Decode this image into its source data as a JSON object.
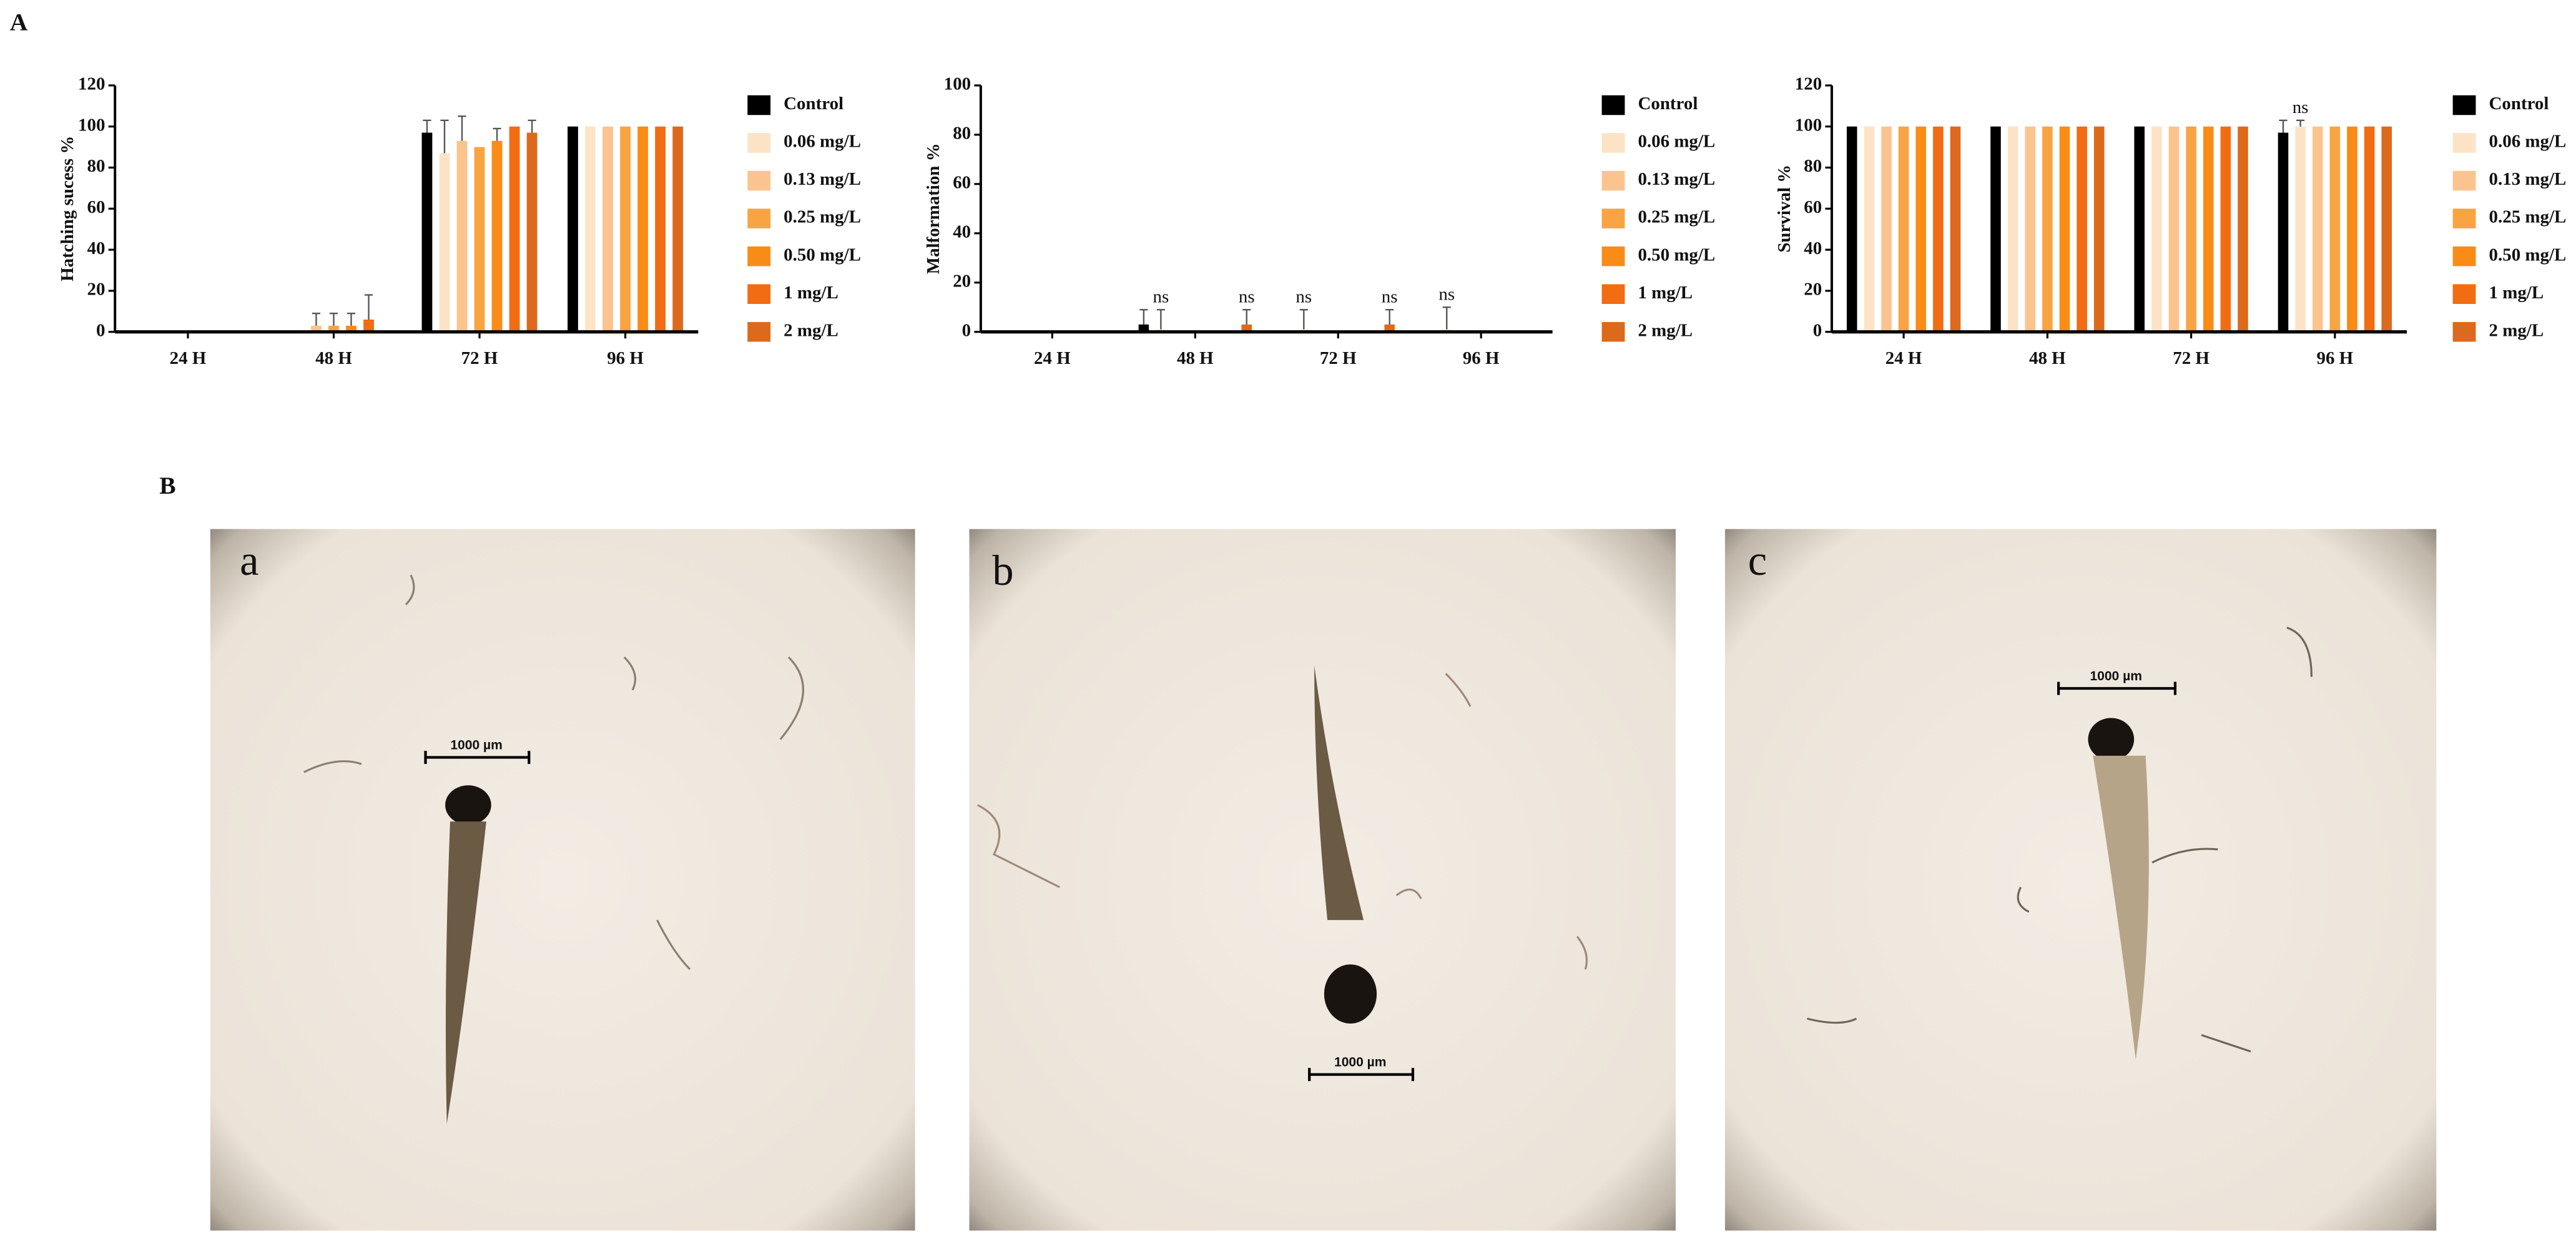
{
  "panel_labels": [
    "A",
    "B"
  ],
  "chart_data": [
    {
      "type": "bar",
      "ylabel": "Hatching sucess %",
      "categories": [
        "24 H",
        "48 H",
        "72 H",
        "96 H"
      ],
      "ylim": [
        0,
        120
      ],
      "yticks": [
        0,
        20,
        40,
        60,
        80,
        100,
        120
      ],
      "series": [
        {
          "name": "Control",
          "color": "#000000",
          "values": [
            0,
            0,
            97,
            100
          ],
          "errors": [
            0,
            0,
            6,
            0
          ]
        },
        {
          "name": "0.06 mg/L",
          "color": "#fde3c6",
          "values": [
            0,
            0,
            87,
            100
          ],
          "errors": [
            0,
            0,
            16,
            0
          ]
        },
        {
          "name": "0.13 mg/L",
          "color": "#fbc48f",
          "values": [
            0,
            3,
            93,
            100
          ],
          "errors": [
            0,
            6,
            12,
            0
          ]
        },
        {
          "name": "0.25 mg/L",
          "color": "#f9a443",
          "values": [
            0,
            3,
            90,
            100
          ],
          "errors": [
            0,
            6,
            0,
            0
          ]
        },
        {
          "name": "0.50 mg/L",
          "color": "#f98c16",
          "values": [
            0,
            3,
            93,
            100
          ],
          "errors": [
            0,
            6,
            6,
            0
          ]
        },
        {
          "name": "1 mg/L",
          "color": "#f26c12",
          "values": [
            0,
            6,
            100,
            100
          ],
          "errors": [
            0,
            12,
            0,
            0
          ]
        },
        {
          "name": "2 mg/L",
          "color": "#dc6a1c",
          "values": [
            0,
            0,
            97,
            100
          ],
          "errors": [
            0,
            0,
            6,
            0
          ]
        }
      ]
    },
    {
      "type": "bar",
      "ylabel": "Malformation %",
      "categories": [
        "24 H",
        "48 H",
        "72 H",
        "96 H"
      ],
      "ylim": [
        0,
        100
      ],
      "yticks": [
        0,
        20,
        40,
        60,
        80,
        100
      ],
      "series": [
        {
          "name": "Control",
          "color": "#000000",
          "values": [
            0,
            3,
            0,
            0
          ],
          "errors": [
            0,
            6,
            0,
            0
          ]
        },
        {
          "name": "0.06 mg/L",
          "color": "#fde3c6",
          "values": [
            0,
            1,
            1,
            1
          ],
          "errors": [
            0,
            8,
            8,
            9
          ]
        },
        {
          "name": "0.13 mg/L",
          "color": "#fbc48f",
          "values": [
            0,
            0,
            0,
            0
          ],
          "errors": [
            0,
            0,
            0,
            0
          ]
        },
        {
          "name": "0.25 mg/L",
          "color": "#f9a443",
          "values": [
            0,
            0,
            0,
            0
          ],
          "errors": [
            0,
            0,
            0,
            0
          ]
        },
        {
          "name": "0.50 mg/L",
          "color": "#f98c16",
          "values": [
            0,
            0,
            0,
            0
          ],
          "errors": [
            0,
            0,
            0,
            0
          ]
        },
        {
          "name": "1 mg/L",
          "color": "#f26c12",
          "values": [
            0,
            0,
            0,
            0
          ],
          "errors": [
            0,
            0,
            0,
            0
          ]
        },
        {
          "name": "2 mg/L",
          "color": "#dc6a1c",
          "values": [
            0,
            3,
            3,
            0
          ],
          "errors": [
            0,
            6,
            6,
            0
          ]
        }
      ],
      "annotations": [
        {
          "label": "ns",
          "series": 1,
          "category": 1
        },
        {
          "label": "ns",
          "series": 6,
          "category": 1
        },
        {
          "label": "ns",
          "series": 1,
          "category": 2
        },
        {
          "label": "ns",
          "series": 6,
          "category": 2
        },
        {
          "label": "ns",
          "series": 1,
          "category": 3
        }
      ]
    },
    {
      "type": "bar",
      "ylabel": "Survival %",
      "categories": [
        "24 H",
        "48 H",
        "72 H",
        "96 H"
      ],
      "ylim": [
        0,
        120
      ],
      "yticks": [
        0,
        20,
        40,
        60,
        80,
        100,
        120
      ],
      "series": [
        {
          "name": "Control",
          "color": "#000000",
          "values": [
            100,
            100,
            100,
            97
          ],
          "errors": [
            0,
            0,
            0,
            6
          ]
        },
        {
          "name": "0.06 mg/L",
          "color": "#fde3c6",
          "values": [
            100,
            100,
            100,
            100
          ],
          "errors": [
            0,
            0,
            0,
            3
          ]
        },
        {
          "name": "0.13 mg/L",
          "color": "#fbc48f",
          "values": [
            100,
            100,
            100,
            100
          ],
          "errors": [
            0,
            0,
            0,
            0
          ]
        },
        {
          "name": "0.25 mg/L",
          "color": "#f9a443",
          "values": [
            100,
            100,
            100,
            100
          ],
          "errors": [
            0,
            0,
            0,
            0
          ]
        },
        {
          "name": "0.50 mg/L",
          "color": "#f98c16",
          "values": [
            100,
            100,
            100,
            100
          ],
          "errors": [
            0,
            0,
            0,
            0
          ]
        },
        {
          "name": "1 mg/L",
          "color": "#f26c12",
          "values": [
            100,
            100,
            100,
            100
          ],
          "errors": [
            0,
            0,
            0,
            0
          ]
        },
        {
          "name": "2 mg/L",
          "color": "#dc6a1c",
          "values": [
            100,
            100,
            100,
            100
          ],
          "errors": [
            0,
            0,
            0,
            0
          ]
        }
      ],
      "annotations": [
        {
          "label": "ns",
          "series": 1,
          "category": 3
        }
      ]
    }
  ],
  "images": [
    {
      "label": "a",
      "scale_bar": "1000 µm"
    },
    {
      "label": "b",
      "scale_bar": "1000 µm"
    },
    {
      "label": "c",
      "scale_bar": "1000 µm"
    }
  ]
}
